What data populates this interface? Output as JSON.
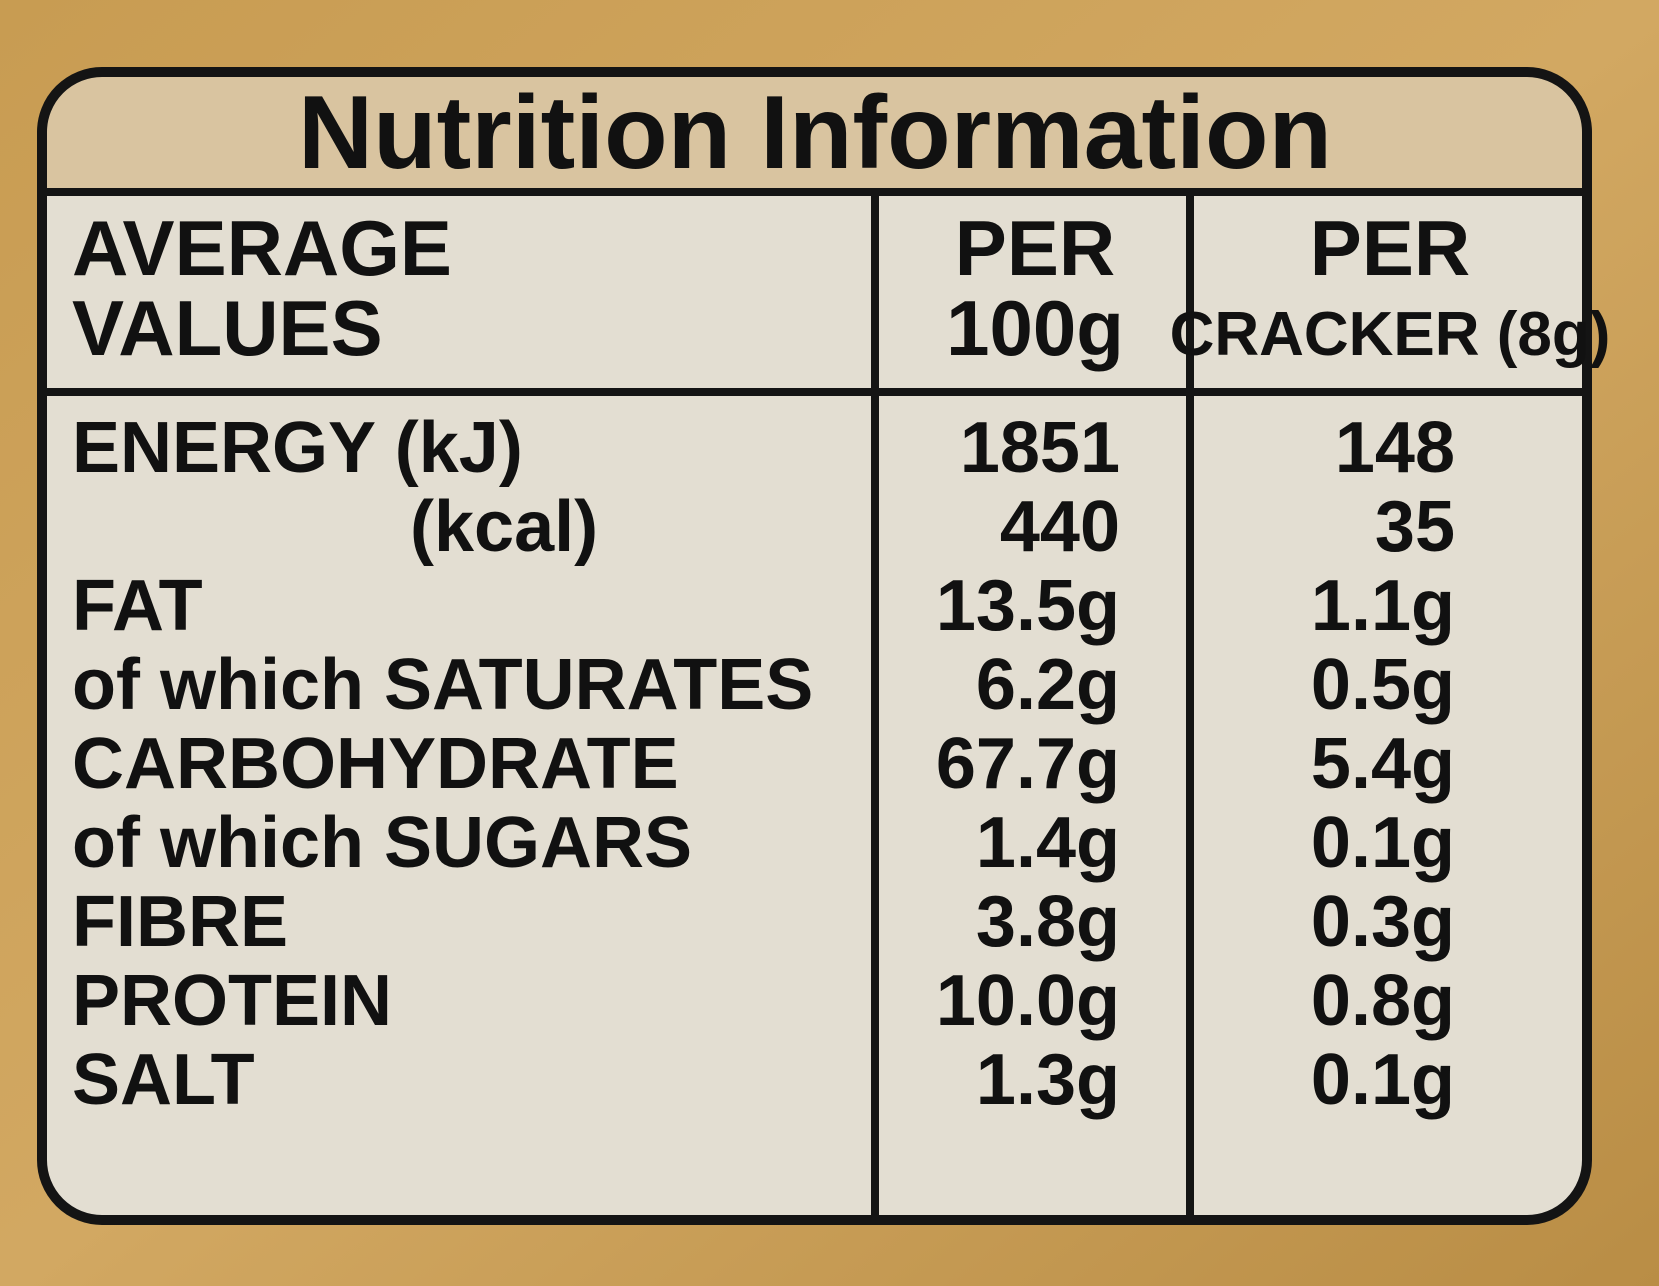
{
  "title": "Nutrition Information",
  "table": {
    "header": [
      [
        "AVERAGE",
        "VALUES"
      ],
      [
        "PER",
        "100g"
      ],
      [
        "PER",
        "CRACKER (8g)"
      ]
    ],
    "rows": [
      [
        "ENERGY (kJ)",
        "1851",
        "148"
      ],
      [
        "(kcal)",
        "440",
        "35"
      ],
      [
        "FAT",
        "13.5g",
        "1.1g"
      ],
      [
        "of which SATURATES",
        "6.2g",
        "0.5g"
      ],
      [
        "CARBOHYDRATE",
        "67.7g",
        "5.4g"
      ],
      [
        "of which SUGARS",
        "1.4g",
        "0.1g"
      ],
      [
        "FIBRE",
        "3.8g",
        "0.3g"
      ],
      [
        "PROTEIN",
        "10.0g",
        "0.8g"
      ],
      [
        "SALT",
        "1.3g",
        "0.1g"
      ]
    ]
  }
}
